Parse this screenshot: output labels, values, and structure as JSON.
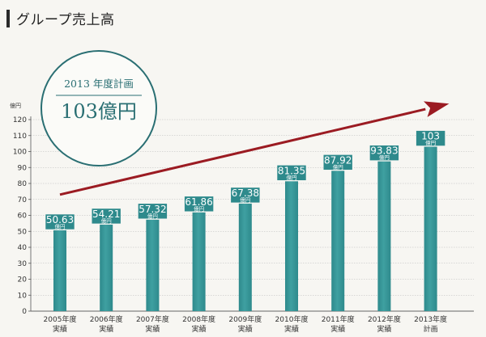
{
  "page": {
    "title": "グループ売上高"
  },
  "callout": {
    "year_text": "2013 年度計画",
    "value_text": "103億円"
  },
  "colors": {
    "bar": "#2e8a8c",
    "bar_light": "#3fa0a1",
    "label_box": "#2e8a8c",
    "arrow": "#9b1b22",
    "circle": "#2a6f73",
    "grid": "#b9b9b9"
  },
  "chart_data": {
    "type": "bar",
    "ylabel": "億円",
    "ylim": [
      0,
      120
    ],
    "ytick_step": 10,
    "grid": "horizontal",
    "categories": [
      [
        "2005年度",
        "実績"
      ],
      [
        "2006年度",
        "実績"
      ],
      [
        "2007年度",
        "実績"
      ],
      [
        "2008年度",
        "実績"
      ],
      [
        "2009年度",
        "実績"
      ],
      [
        "2010年度",
        "実績"
      ],
      [
        "2011年度",
        "実績"
      ],
      [
        "2012年度",
        "実績"
      ],
      [
        "2013年度",
        "計画"
      ]
    ],
    "values": [
      50.63,
      54.21,
      57.32,
      61.86,
      67.38,
      81.35,
      87.92,
      93.83,
      103
    ],
    "value_labels": [
      "50.63",
      "54.21",
      "57.32",
      "61.86",
      "67.38",
      "81.35",
      "87.92",
      "93.83",
      "103"
    ],
    "unit_label": "億円",
    "trend_arrow": {
      "from": {
        "category_index": 0,
        "y": 73
      },
      "to": {
        "category_index": 8.4,
        "y": 130
      }
    }
  }
}
